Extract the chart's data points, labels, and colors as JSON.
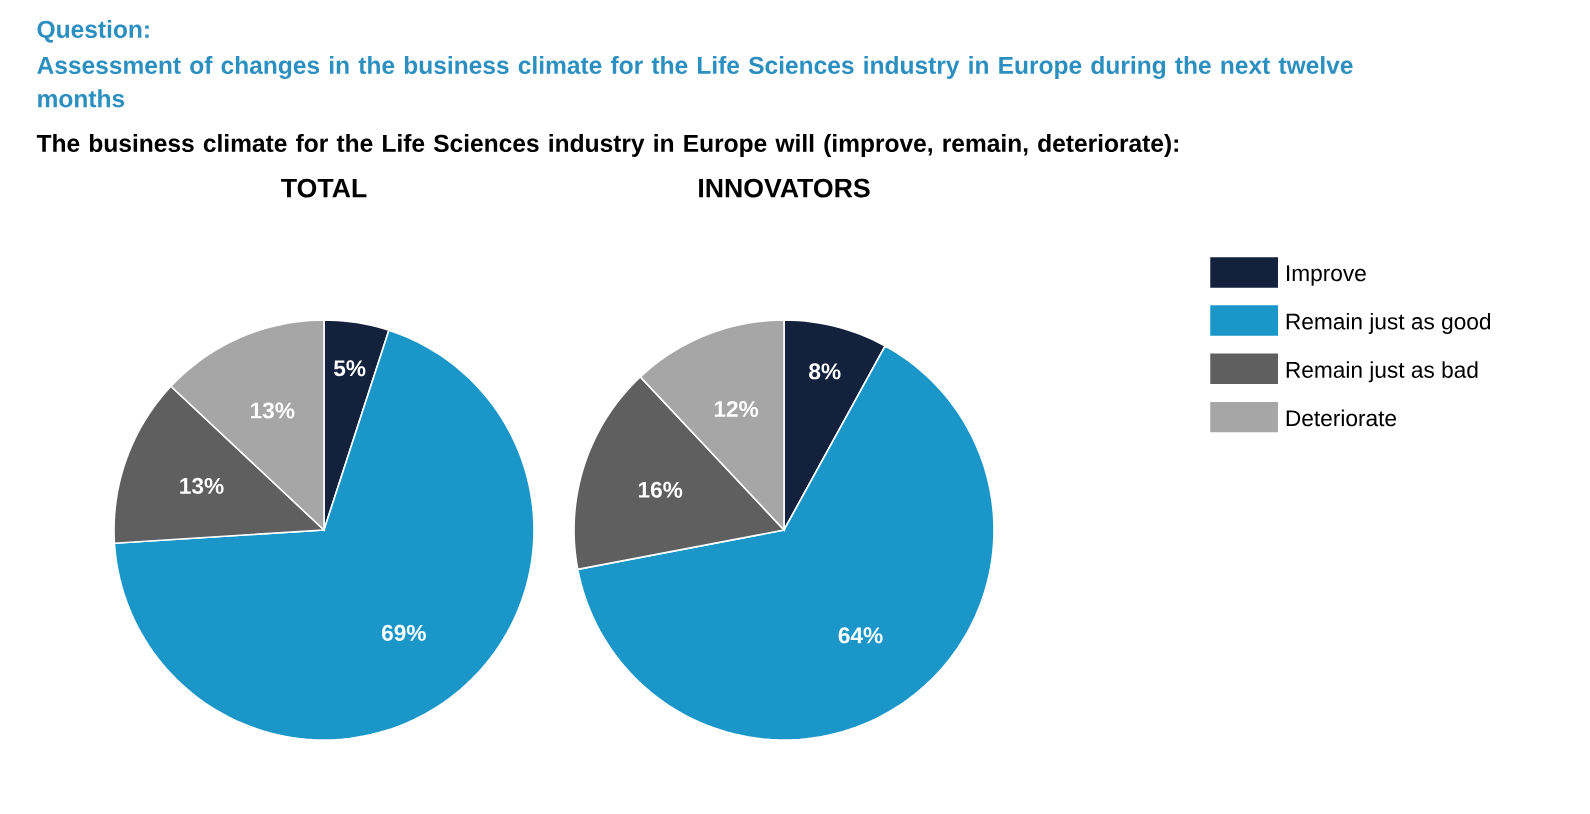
{
  "chart_data": [
    {
      "type": "pie",
      "title": "TOTAL",
      "annotations": [
        "Question:",
        "Assessment of changes in the business climate for the Life Sciences industry in Europe during the next twelve months",
        "The business climate for the Life Sciences industry in Europe will (improve, remain, deteriorate):"
      ],
      "categories": [
        "Improve",
        "Remain just as good",
        "Remain just as bad",
        "Deteriorate"
      ],
      "values": [
        5,
        69,
        13,
        13
      ],
      "value_labels": [
        "5%",
        "69%",
        "13%",
        "13%"
      ],
      "colors": [
        "#14213d",
        "#1a96c8",
        "#5f5f5f",
        "#a6a6a6"
      ],
      "legend": "right"
    },
    {
      "type": "pie",
      "title": "INNOVATORS",
      "categories": [
        null,
        null,
        null,
        null
      ],
      "values": [
        8,
        64,
        16,
        12
      ],
      "value_labels": [
        "8%",
        "64%",
        "16%",
        "12%"
      ],
      "colors": [
        "#14213d",
        "#1a96c8",
        "#5f5f5f",
        "#a6a6a6"
      ]
    }
  ]
}
